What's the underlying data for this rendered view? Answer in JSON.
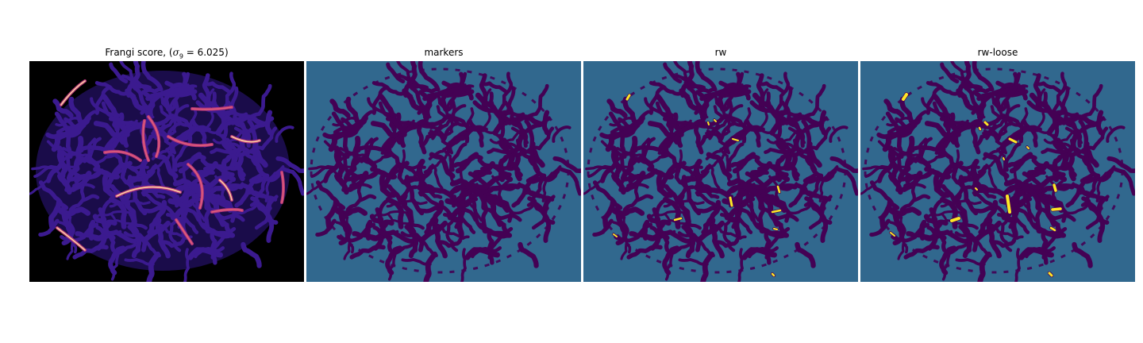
{
  "figure": {
    "panels": [
      {
        "id": "frangi",
        "title": {
          "prefix": "Frangi score, (",
          "symbol": "σ",
          "subscript": "9",
          "equals": " = 6.025",
          "suffix": ")"
        },
        "colormap": "magma",
        "background": "#000000"
      },
      {
        "id": "markers",
        "title": "markers",
        "colormap": "viridis",
        "background": "#31688e"
      },
      {
        "id": "rw",
        "title": "rw",
        "colormap": "viridis",
        "background": "#31688e",
        "highlight": "#fde725"
      },
      {
        "id": "rw-loose",
        "title": "rw-loose",
        "colormap": "viridis",
        "background": "#31688e",
        "highlight": "#fde725"
      }
    ]
  },
  "colors": {
    "dark": "#440154",
    "teal": "#31688e",
    "yellow": "#fde725",
    "black": "#000000",
    "frangi_low": "#3b1a8f",
    "frangi_mid": "#b5367a",
    "frangi_high": "#fcd0a0"
  }
}
